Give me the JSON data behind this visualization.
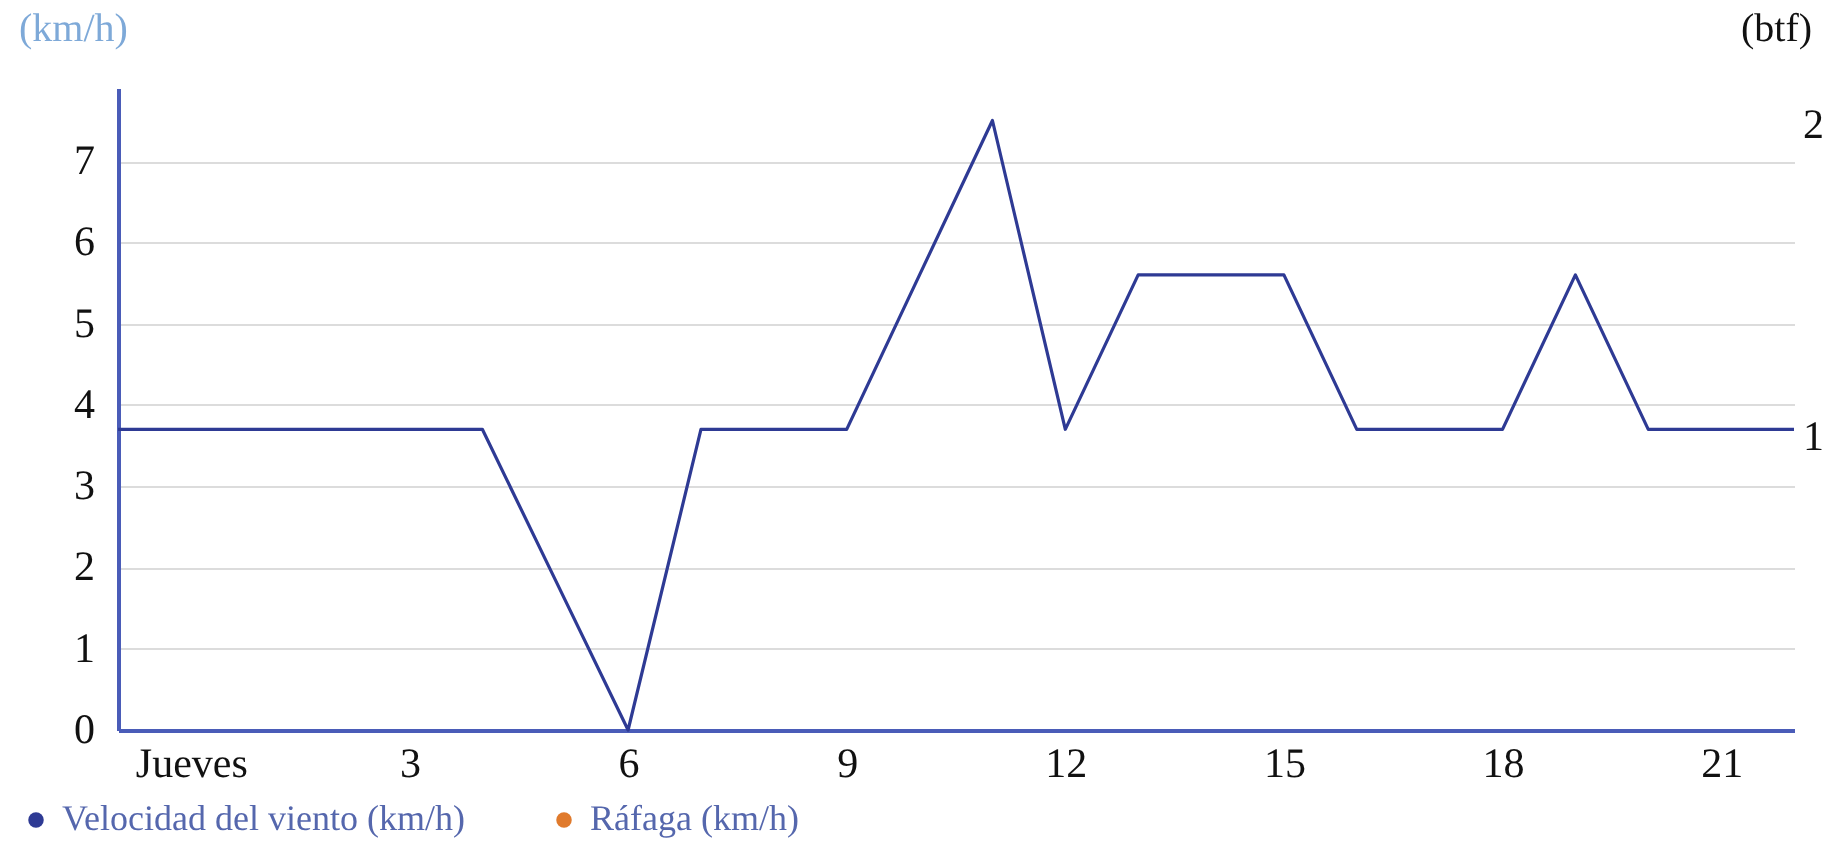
{
  "chart_data": {
    "type": "line",
    "categories": [
      null,
      "Jueves",
      null,
      null,
      "3",
      null,
      null,
      "6",
      null,
      null,
      "9",
      null,
      null,
      "12",
      null,
      null,
      "15",
      null,
      null,
      "18",
      null,
      null,
      "21",
      null
    ],
    "series": [
      {
        "name": "Velocidad del viento (km/h)",
        "color": "#2e3a94",
        "values": [
          3.7,
          3.7,
          3.7,
          3.7,
          3.7,
          3.7,
          1.85,
          0,
          3.7,
          3.7,
          3.7,
          5.6,
          7.5,
          3.7,
          5.6,
          5.6,
          5.6,
          3.7,
          3.7,
          3.7,
          5.6,
          3.7,
          3.7,
          3.7
        ]
      },
      {
        "name": "Ráfaga (km/h)",
        "color": "#e07a2c",
        "values": [
          null,
          null,
          null,
          null,
          null,
          null,
          null,
          null,
          null,
          null,
          null,
          null,
          null,
          null,
          null,
          null,
          null,
          null,
          null,
          null,
          null,
          null,
          null,
          null
        ]
      }
    ],
    "ylabel": "(km/h)",
    "y2label": "(btf)",
    "ylim": [
      0,
      7.9
    ],
    "yticks": [
      0,
      1,
      2,
      3,
      4,
      5,
      6,
      7
    ],
    "y2lim": [
      0.06,
      2.12
    ],
    "y2ticks": [
      1,
      2
    ],
    "grid": "y",
    "legend": "bottom",
    "marker": "none",
    "line_style": "solid"
  }
}
